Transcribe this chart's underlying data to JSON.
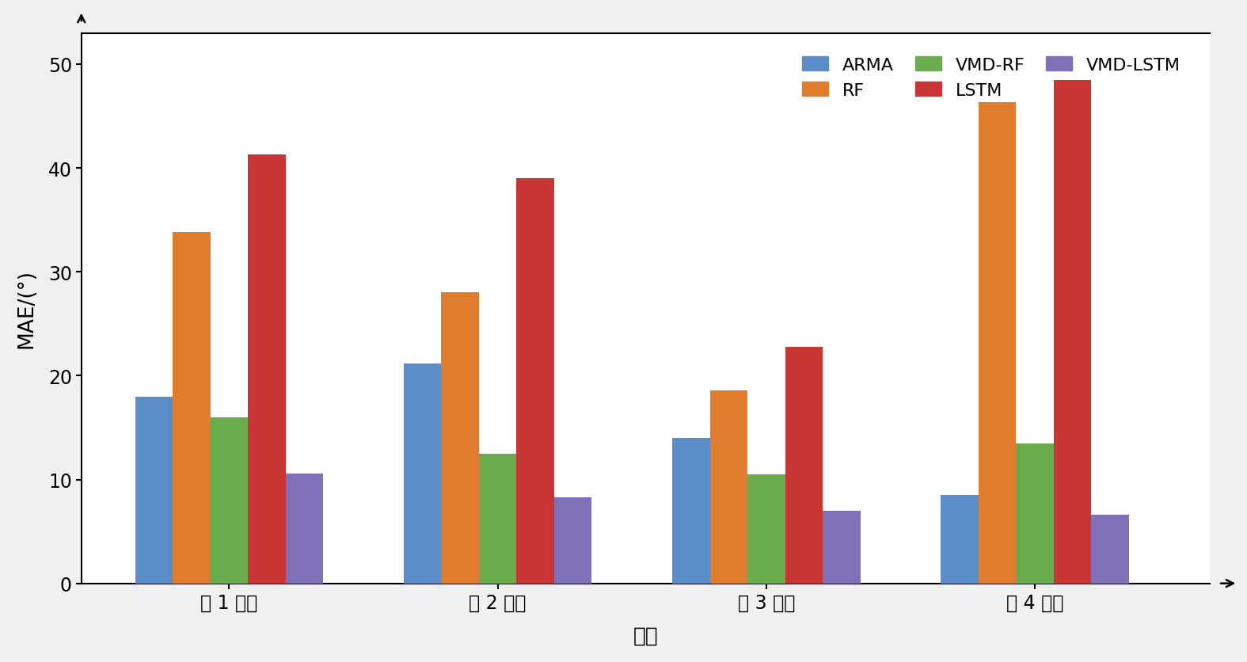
{
  "categories": [
    "第 1 季度",
    "第 2 季度",
    "第 3 季度",
    "第 4 季度"
  ],
  "series_names": [
    "ARMA",
    "RF",
    "VMD-RF",
    "LSTM",
    "VMD-LSTM"
  ],
  "series_values": [
    [
      18.0,
      21.2,
      14.0,
      8.5
    ],
    [
      33.8,
      28.0,
      18.6,
      46.3
    ],
    [
      16.0,
      12.5,
      10.5,
      13.5
    ],
    [
      41.3,
      39.0,
      22.8,
      48.5
    ],
    [
      10.6,
      8.3,
      7.0,
      6.6
    ]
  ],
  "colors": [
    "#5b8dc8",
    "#e07c2e",
    "#6aab4e",
    "#c93535",
    "#8070b8"
  ],
  "xlabel": "季度",
  "ylabel": "MAE/(°)",
  "ylim": [
    0,
    53
  ],
  "yticks": [
    0,
    10,
    20,
    30,
    40,
    50
  ],
  "bar_width": 0.14,
  "plot_bg": "#ffffff",
  "fig_bg": "#f0f0f0",
  "figsize": [
    15.75,
    8.37
  ],
  "dpi": 100,
  "tick_fontsize": 17,
  "label_fontsize": 19,
  "legend_fontsize": 16
}
